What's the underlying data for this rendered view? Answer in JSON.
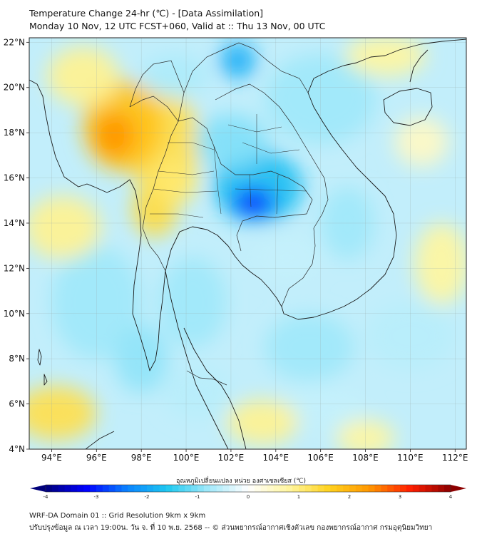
{
  "title": {
    "line1": "Temperature Change 24-hr (℃) - [Data Assimilation]",
    "line2": "Monday 10 Nov, 12 UTC FCST+060, Valid at :: Thu 13 Nov, 00 UTC"
  },
  "map": {
    "lon_range": [
      93,
      112.5
    ],
    "lat_range": [
      4,
      22.2
    ],
    "lat_ticks": [
      {
        "value": 4,
        "label": "4°N"
      },
      {
        "value": 6,
        "label": "6°N"
      },
      {
        "value": 8,
        "label": "8°N"
      },
      {
        "value": 10,
        "label": "10°N"
      },
      {
        "value": 12,
        "label": "12°N"
      },
      {
        "value": 14,
        "label": "14°N"
      },
      {
        "value": 16,
        "label": "16°N"
      },
      {
        "value": 18,
        "label": "18°N"
      },
      {
        "value": 20,
        "label": "20°N"
      },
      {
        "value": 22,
        "label": "22°N"
      }
    ],
    "lon_ticks": [
      {
        "value": 94,
        "label": "94°E"
      },
      {
        "value": 96,
        "label": "96°E"
      },
      {
        "value": 98,
        "label": "98°E"
      },
      {
        "value": 100,
        "label": "100°E"
      },
      {
        "value": 102,
        "label": "102°E"
      },
      {
        "value": 104,
        "label": "104°E"
      },
      {
        "value": 106,
        "label": "106°E"
      },
      {
        "value": 108,
        "label": "108°E"
      },
      {
        "value": 110,
        "label": "110°E"
      },
      {
        "value": 112,
        "label": "112°E"
      }
    ],
    "field": {
      "unit": "°C",
      "blobs": [
        {
          "lon": 96.8,
          "lat": 17.9,
          "value": 2.4,
          "rx": 0.9,
          "ry": 1.0
        },
        {
          "lon": 97.2,
          "lat": 18.3,
          "value": 1.8,
          "rx": 1.8,
          "ry": 2.0
        },
        {
          "lon": 99.0,
          "lat": 17.5,
          "value": 1.3,
          "rx": 1.6,
          "ry": 2.5
        },
        {
          "lon": 98.6,
          "lat": 14.6,
          "value": 1.4,
          "rx": 1.0,
          "ry": 1.2
        },
        {
          "lon": 99.5,
          "lat": 15.8,
          "value": 1.1,
          "rx": 1.0,
          "ry": 1.0
        },
        {
          "lon": 94.2,
          "lat": 5.6,
          "value": 1.3,
          "rx": 1.8,
          "ry": 1.2
        },
        {
          "lon": 94.5,
          "lat": 13.8,
          "value": 0.9,
          "rx": 1.7,
          "ry": 1.4
        },
        {
          "lon": 95.4,
          "lat": 20.5,
          "value": 0.9,
          "rx": 1.6,
          "ry": 1.3
        },
        {
          "lon": 108.9,
          "lat": 21.4,
          "value": 0.8,
          "rx": 1.8,
          "ry": 0.9
        },
        {
          "lon": 103.4,
          "lat": 5.2,
          "value": 0.9,
          "rx": 1.6,
          "ry": 1.0
        },
        {
          "lon": 111.4,
          "lat": 12.2,
          "value": 0.8,
          "rx": 1.2,
          "ry": 1.8
        },
        {
          "lon": 110.5,
          "lat": 17.6,
          "value": 0.5,
          "rx": 1.2,
          "ry": 1.1
        },
        {
          "lon": 108.0,
          "lat": 4.5,
          "value": 0.8,
          "rx": 1.3,
          "ry": 0.8
        },
        {
          "lon": 103.0,
          "lat": 14.9,
          "value": -3.0,
          "rx": 0.9,
          "ry": 0.6
        },
        {
          "lon": 103.2,
          "lat": 15.6,
          "value": -1.7,
          "rx": 2.0,
          "ry": 1.6
        },
        {
          "lon": 102.3,
          "lat": 21.2,
          "value": -1.9,
          "rx": 0.8,
          "ry": 0.8
        },
        {
          "lon": 102.0,
          "lat": 17.6,
          "value": -1.0,
          "rx": 1.6,
          "ry": 1.2
        },
        {
          "lon": 106.0,
          "lat": 19.5,
          "value": -0.8,
          "rx": 2.5,
          "ry": 2.0
        },
        {
          "lon": 96.0,
          "lat": 10.5,
          "value": -0.8,
          "rx": 2.0,
          "ry": 2.5
        },
        {
          "lon": 98.0,
          "lat": 8.0,
          "value": -0.9,
          "rx": 1.2,
          "ry": 1.5
        },
        {
          "lon": 100.3,
          "lat": 10.5,
          "value": -0.8,
          "rx": 1.5,
          "ry": 2.0
        },
        {
          "lon": 105.5,
          "lat": 8.5,
          "value": -0.8,
          "rx": 2.0,
          "ry": 1.5
        },
        {
          "lon": 107.2,
          "lat": 14.0,
          "value": -0.8,
          "rx": 1.2,
          "ry": 1.6
        },
        {
          "lon": 110.0,
          "lat": 9.0,
          "value": -0.6,
          "rx": 2.0,
          "ry": 1.5
        },
        {
          "lon": 99.5,
          "lat": 20.5,
          "value": -0.7,
          "rx": 1.5,
          "ry": 1.0
        },
        {
          "lon": 104.5,
          "lat": 12.5,
          "value": -0.5,
          "rx": 1.5,
          "ry": 1.0
        },
        {
          "lon": 106.0,
          "lat": 5.8,
          "value": -0.5,
          "rx": 2.0,
          "ry": 1.0
        },
        {
          "lon": 100.5,
          "lat": 6.5,
          "value": -0.6,
          "rx": 1.5,
          "ry": 1.2
        }
      ]
    }
  },
  "colorbar": {
    "title": "อุณหภูมิเปลี่ยนแปลง หน่วย องศาเซลเซียส (℃)",
    "min": -4,
    "max": 4,
    "ticks": [
      {
        "value": -4,
        "label": "-4"
      },
      {
        "value": -3,
        "label": "-3"
      },
      {
        "value": -2,
        "label": "-2"
      },
      {
        "value": -1,
        "label": "-1"
      },
      {
        "value": 0,
        "label": "0"
      },
      {
        "value": 1,
        "label": "1"
      },
      {
        "value": 2,
        "label": "2"
      },
      {
        "value": 3,
        "label": "3"
      },
      {
        "value": 4,
        "label": "4"
      }
    ],
    "colors": [
      "#00007a",
      "#0000ff",
      "#0a82ff",
      "#1ec8f0",
      "#a0e8fa",
      "#ffffff",
      "#fff6a0",
      "#ffd21e",
      "#ff9600",
      "#ff1e00",
      "#8c0000"
    ]
  },
  "footer": {
    "line1": "WRF-DA Domain 01 :: Grid Resolution 9km x 9km",
    "line2": "ปรับปรุงข้อมูล ณ เวลา 19:00น. วัน จ. ที่ 10 พ.ย. 2568 -- © ส่วนพยากรณ์อากาศเชิงตัวเลข กองพยากรณ์อากาศ กรมอุตุนิยมวิทยา"
  }
}
